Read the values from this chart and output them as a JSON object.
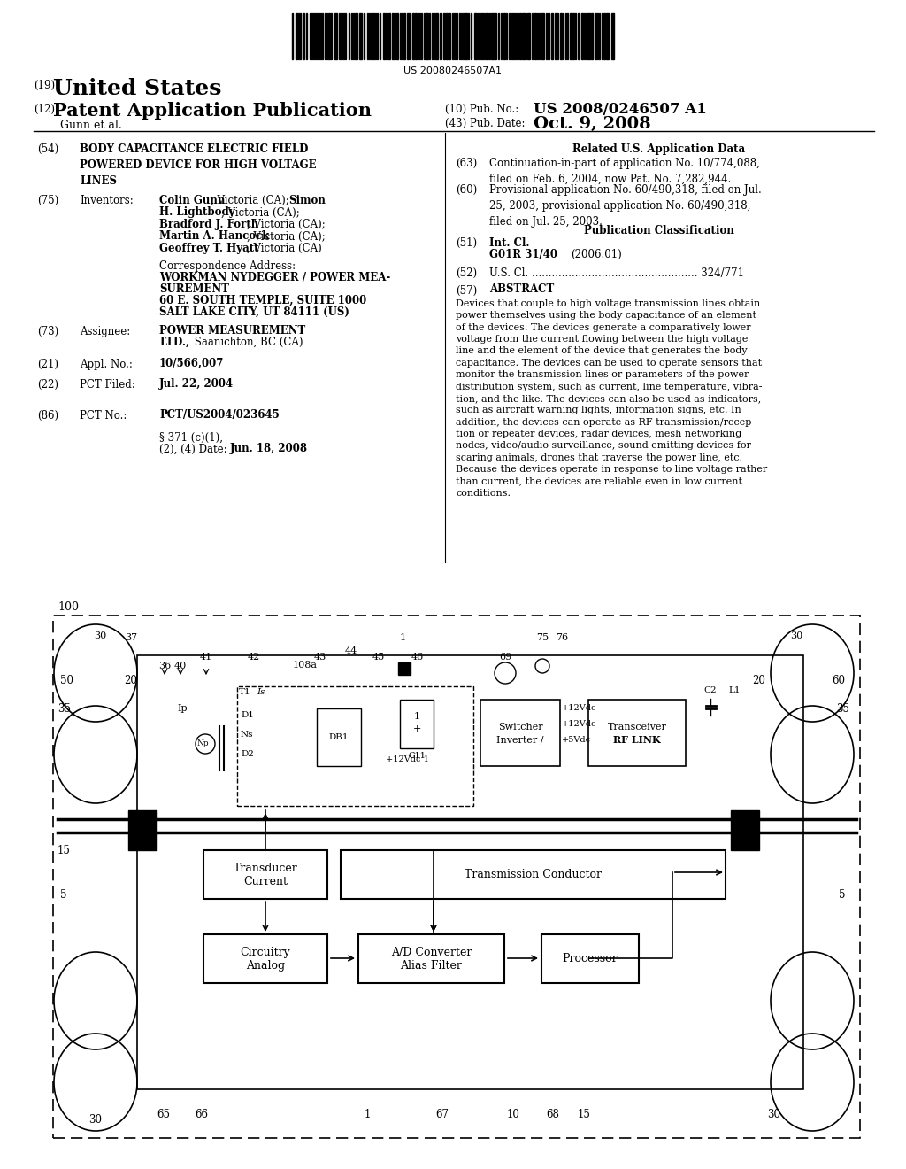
{
  "bg_color": "#ffffff",
  "barcode_text": "US 20080246507A1",
  "title_19": "(19)",
  "title_us": "United States",
  "title_12": "(12)",
  "title_pat": "Patent Application Publication",
  "title_10": "(10) Pub. No.:",
  "pub_no": "US 2008/0246507 A1",
  "title_43": "(43) Pub. Date:",
  "pub_date": "Oct. 9, 2008",
  "gunn": "Gunn et al.",
  "related_title": "Related U.S. Application Data",
  "right_63_text": "Continuation-in-part of application No. 10/774,088,\nfiled on Feb. 6, 2004, now Pat. No. 7,282,944.",
  "right_60_text": "Provisional application No. 60/490,318, filed on Jul.\n25, 2003, provisional application No. 60/490,318,\nfiled on Jul. 25, 2003.",
  "pub_class_title": "Publication Classification",
  "right_51_val": "G01R 31/40",
  "right_51_year": "(2006.01)",
  "right_52_label": "U.S. Cl. .................................................. 324/771",
  "right_57_label": "ABSTRACT",
  "abstract": "Devices that couple to high voltage transmission lines obtain\npower themselves using the body capacitance of an element\nof the devices. The devices generate a comparatively lower\nvoltage from the current flowing between the high voltage\nline and the element of the device that generates the body\ncapacitance. The devices can be used to operate sensors that\nmonitor the transmission lines or parameters of the power\ndistribution system, such as current, line temperature, vibra-\ntion, and the like. The devices can also be used as indicators,\nsuch as aircraft warning lights, information signs, etc. In\naddition, the devices can operate as RF transmission/recep-\ntion or repeater devices, radar devices, mesh networking\nnodes, video/audio surveillance, sound emitting devices for\nscaring animals, drones that traverse the power line, etc.\nBecause the devices operate in response to line voltage rather\nthan current, the devices are reliable even in low current\nconditions.",
  "field_54_label": "BODY CAPACITANCE ELECTRIC FIELD\nPOWERED DEVICE FOR HIGH VOLTAGE\nLINES",
  "field_75_label": "Inventors:",
  "corr_addr_label": "Correspondence Address:",
  "field_73_label": "Assignee:",
  "appl_no": "10/566,007",
  "pct_filed": "Jul. 22, 2004",
  "pct_no": "PCT/US2004/023645",
  "field_371_date": "Jun. 18, 2008",
  "diagram_label": "100"
}
